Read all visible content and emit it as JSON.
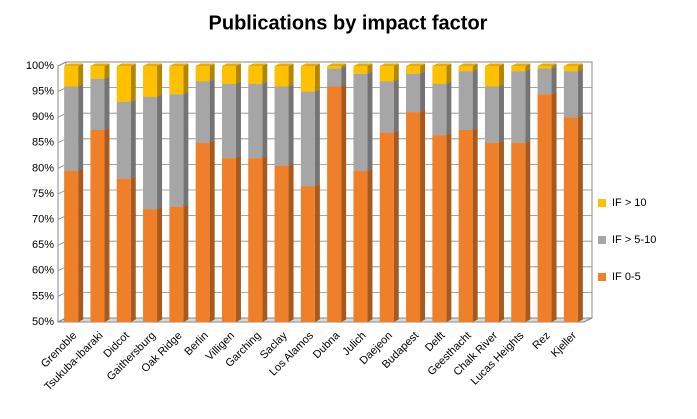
{
  "chart_data": {
    "type": "bar3d_stacked",
    "title": "Publications by impact factor",
    "categories": [
      "Grenoble",
      "Tsukuba-Ibaraki",
      "Didcot",
      "Gaithersburg",
      "Oak Ridge",
      "Berlin",
      "Villigen",
      "Garching",
      "Saclay",
      "Los Alamos",
      "Dubna",
      "Julich",
      "Daejeon",
      "Budapest",
      "Delft",
      "Geesthacht",
      "Chalk River",
      "Lucas Heights",
      "Rez",
      "Kjeller"
    ],
    "series": [
      {
        "name": "IF 0-5",
        "color": "#f07f2a",
        "values": [
          79.5,
          87.5,
          78,
          72,
          72.5,
          85,
          82,
          82,
          80.5,
          76.5,
          96,
          79.5,
          87,
          91,
          86.5,
          87.5,
          85,
          85,
          94.5,
          90
        ]
      },
      {
        "name": "IF > 5-10",
        "color": "#a6a6a6",
        "values": [
          16.5,
          10,
          15,
          22,
          22,
          12,
          14.5,
          14.5,
          15.5,
          18.5,
          3.5,
          19,
          10,
          7.5,
          10,
          11.5,
          11,
          14,
          5,
          9
        ]
      },
      {
        "name": "IF > 10",
        "color": "#ffc000",
        "values": [
          4,
          2.5,
          7,
          6,
          5.5,
          3,
          3.5,
          3.5,
          4,
          5,
          0.5,
          1.5,
          3,
          1.5,
          3.5,
          1,
          4,
          1,
          0.5,
          1
        ]
      }
    ],
    "ylim": [
      50,
      100
    ],
    "yticks": [
      {
        "value": 50,
        "label": "50%"
      },
      {
        "value": 55,
        "label": "55%"
      },
      {
        "value": 60,
        "label": "60%"
      },
      {
        "value": 65,
        "label": "65%"
      },
      {
        "value": 70,
        "label": "70%"
      },
      {
        "value": 75,
        "label": "75%"
      },
      {
        "value": 80,
        "label": "80%"
      },
      {
        "value": 85,
        "label": "85%"
      },
      {
        "value": 90,
        "label": "90%"
      },
      {
        "value": 95,
        "label": "95%"
      },
      {
        "value": 100,
        "label": "100%"
      }
    ],
    "grid": true,
    "legend": "right"
  }
}
